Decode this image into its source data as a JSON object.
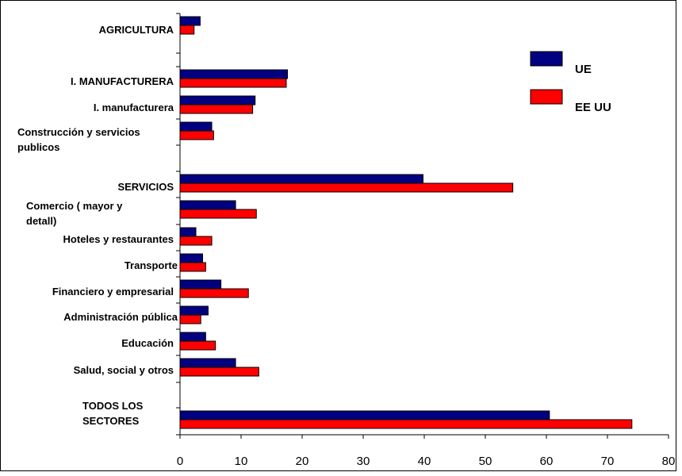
{
  "chart_data": {
    "type": "bar",
    "orientation": "horizontal",
    "title": "",
    "xlabel": "",
    "ylabel": "",
    "xlim": [
      0,
      80
    ],
    "x_ticks": [
      "0",
      "10",
      "20",
      "30",
      "40",
      "50",
      "60",
      "70",
      "80"
    ],
    "grid": false,
    "legend_position": "top-right",
    "categories": [
      "AGRICULTURA",
      "I. MANUFACTURERA",
      "I. manufacturera",
      "Construcción y servicios publicos",
      "SERVICIOS",
      "Comercio ( mayor y detall)",
      "Hoteles y restaurantes",
      "Transporte",
      "Financiero y empresarial",
      "Administración pública",
      "Educación",
      "Salud, social y otros",
      "TODOS LOS SECTORES"
    ],
    "category_label_lines": [
      [
        "AGRICULTURA"
      ],
      [
        "I. MANUFACTURERA"
      ],
      [
        "I. manufacturera"
      ],
      [
        "Construcción y servicios",
        "publicos"
      ],
      [
        "SERVICIOS"
      ],
      [
        "Comercio ( mayor y",
        "detall)"
      ],
      [
        "Hoteles y restaurantes"
      ],
      [
        "Transporte"
      ],
      [
        "Financiero y empresarial"
      ],
      [
        "Administración pública"
      ],
      [
        "Educación"
      ],
      [
        "Salud, social y otros"
      ],
      [
        "TODOS LOS",
        "SECTORES"
      ]
    ],
    "series": [
      {
        "name": "UE",
        "color": "#000080",
        "values": [
          3.3,
          17.6,
          12.3,
          5.2,
          39.8,
          9.1,
          2.6,
          3.7,
          6.7,
          4.6,
          4.2,
          9.1,
          60.5
        ]
      },
      {
        "name": "EE UU",
        "color": "#ff0000",
        "values": [
          2.3,
          17.4,
          11.9,
          5.5,
          54.5,
          12.5,
          5.2,
          4.2,
          11.2,
          3.4,
          5.8,
          12.9,
          74.0
        ]
      }
    ]
  }
}
